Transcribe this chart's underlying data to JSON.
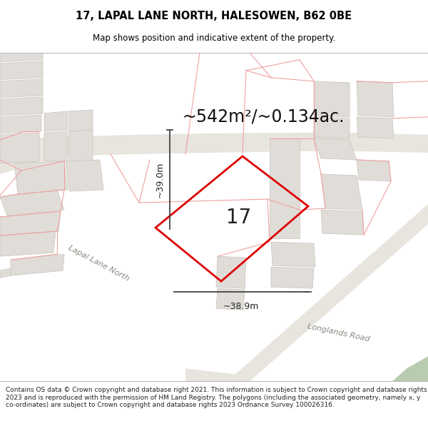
{
  "title": "17, LAPAL LANE NORTH, HALESOWEN, B62 0BE",
  "subtitle": "Map shows position and indicative extent of the property.",
  "area_text": "~542m²/~0.134ac.",
  "plot_number": "17",
  "dim1": "~39.0m",
  "dim2": "~38.9m",
  "footer": "Contains OS data © Crown copyright and database right 2021. This information is subject to Crown copyright and database rights 2023 and is reproduced with the permission of HM Land Registry. The polygons (including the associated geometry, namely x, y co-ordinates) are subject to Crown copyright and database rights 2023 Ordnance Survey 100026316.",
  "bg_color": "#ffffff",
  "map_bg": "#f7f4f0",
  "plot_line_color": "#dd0000",
  "street_name": "Lapal Lane North",
  "street_name2": "Longlands Road",
  "building_fill": "#e0ddd8",
  "building_edge": "#c8c4be",
  "road_fill": "#e8e4de",
  "road_edge": "#c8c4be",
  "pink_line": "#f0a0a0",
  "green_fill": "#b8ccb0",
  "dim_line_color": "#444444",
  "area_text_size": 18,
  "plot_num_size": 22,
  "street_label_size": 8,
  "footer_size": 6.5
}
